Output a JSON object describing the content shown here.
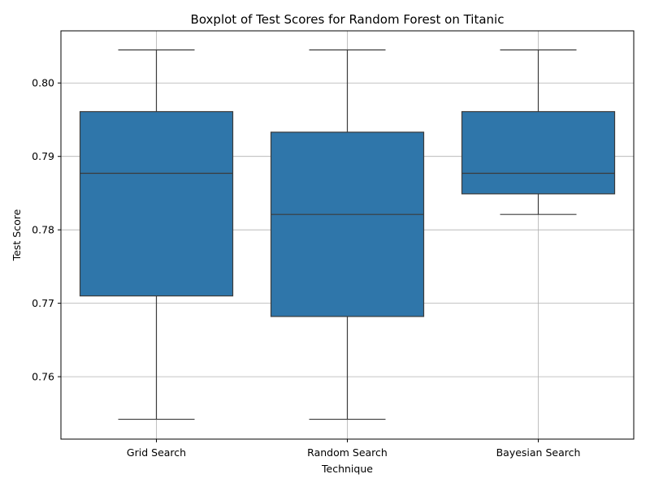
{
  "chart_data": {
    "type": "boxplot",
    "title": "Boxplot of Test Scores for Random Forest on Titanic",
    "xlabel": "Technique",
    "ylabel": "Test Score",
    "ylim": [
      0.7515,
      0.8071
    ],
    "yticks": [
      0.76,
      0.77,
      0.78,
      0.79,
      0.8
    ],
    "ytick_labels": [
      "0.76",
      "0.77",
      "0.78",
      "0.79",
      "0.80"
    ],
    "grid": true,
    "colors": {
      "box": "#2f76aa",
      "line": "#3b3b3b",
      "grid": "#b0b0b0",
      "axis": "#000000"
    },
    "categories": [
      "Grid Search",
      "Random Search",
      "Bayesian Search"
    ],
    "boxes": [
      {
        "name": "Grid Search",
        "whisker_low": 0.7542,
        "q1": 0.771,
        "median": 0.7877,
        "q3": 0.7961,
        "whisker_high": 0.8045
      },
      {
        "name": "Random Search",
        "whisker_low": 0.7542,
        "q1": 0.7682,
        "median": 0.7821,
        "q3": 0.7933,
        "whisker_high": 0.8045
      },
      {
        "name": "Bayesian Search",
        "whisker_low": 0.7821,
        "q1": 0.7849,
        "median": 0.7877,
        "q3": 0.7961,
        "whisker_high": 0.8045
      }
    ]
  }
}
